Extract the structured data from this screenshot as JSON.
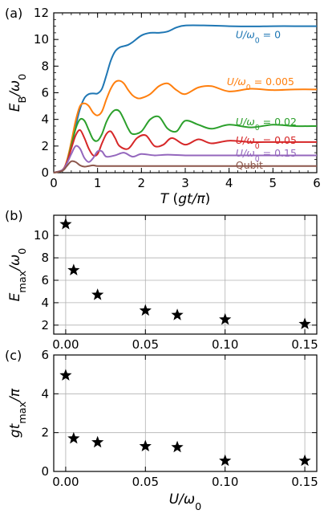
{
  "chart_data": [
    {
      "panel_label": "(a)",
      "type": "line",
      "xlabel": "T (gt/π)",
      "ylabel": "E_B/ω_0",
      "xlim": [
        0,
        6
      ],
      "ylim": [
        0,
        12
      ],
      "xticks": [
        "0",
        "1",
        "2",
        "3",
        "4",
        "5",
        "6"
      ],
      "yticks": [
        "0",
        "2",
        "4",
        "6",
        "8",
        "10",
        "12"
      ],
      "grid": false,
      "series": [
        {
          "name": "U/ω_0 = 0",
          "color": "#1f77b4",
          "final": 11.0,
          "rise_end": 0.9,
          "oscillation": "damped steps",
          "x": [
            0,
            0.2,
            0.3,
            0.4,
            0.5,
            0.6,
            0.7,
            0.8,
            0.9,
            1.0,
            1.1,
            1.2,
            1.3,
            1.4,
            1.5,
            1.6,
            1.7,
            1.8,
            2.0,
            2.2,
            2.4,
            2.6,
            2.8,
            3.0,
            3.5,
            4.0,
            4.5,
            5.0,
            5.5,
            6.0
          ],
          "y": [
            0,
            0.2,
            0.8,
            2.0,
            3.5,
            4.8,
            5.6,
            5.9,
            5.95,
            5.95,
            6.3,
            7.3,
            8.4,
            9.1,
            9.4,
            9.5,
            9.6,
            9.8,
            10.3,
            10.5,
            10.5,
            10.6,
            10.9,
            11.05,
            11.05,
            11.0,
            10.98,
            11.0,
            11.0,
            11.0
          ]
        },
        {
          "name": "U/ω_0 = 0.005",
          "color": "#ff7f0e",
          "final": 6.3,
          "rise_end": 0.75,
          "oscillation": "damped",
          "x": [
            0,
            0.2,
            0.3,
            0.4,
            0.5,
            0.6,
            0.7,
            0.8,
            0.9,
            1.0,
            1.1,
            1.2,
            1.3,
            1.4,
            1.5,
            1.6,
            1.7,
            1.8,
            1.9,
            2.0,
            2.2,
            2.4,
            2.6,
            2.8,
            3.0,
            3.3,
            3.6,
            4.0,
            4.5,
            5.0,
            5.5,
            6.0
          ],
          "y": [
            0,
            0.2,
            0.9,
            2.3,
            3.9,
            5.0,
            5.2,
            5.0,
            4.5,
            4.3,
            4.6,
            5.5,
            6.3,
            6.8,
            6.9,
            6.7,
            6.2,
            5.8,
            5.6,
            5.6,
            5.9,
            6.5,
            6.7,
            6.2,
            5.9,
            6.4,
            6.5,
            6.1,
            6.3,
            6.2,
            6.25,
            6.25
          ]
        },
        {
          "name": "U/ω_0 = 0.02",
          "color": "#2ca02c",
          "final": 3.5,
          "oscillation": "damped",
          "x": [
            0,
            0.2,
            0.3,
            0.4,
            0.5,
            0.6,
            0.7,
            0.8,
            0.9,
            1.0,
            1.1,
            1.2,
            1.3,
            1.4,
            1.5,
            1.6,
            1.7,
            1.8,
            2.0,
            2.2,
            2.4,
            2.6,
            2.8,
            3.0,
            3.3,
            3.6,
            4.0,
            4.5,
            5.0,
            5.5,
            6.0
          ],
          "y": [
            0,
            0.2,
            0.8,
            2.0,
            3.3,
            4.0,
            3.9,
            3.2,
            2.5,
            2.4,
            2.9,
            3.8,
            4.4,
            4.7,
            4.6,
            4.0,
            3.3,
            2.9,
            3.1,
            4.0,
            4.2,
            3.3,
            3.1,
            3.9,
            3.6,
            3.3,
            3.6,
            3.4,
            3.6,
            3.5,
            3.5
          ]
        },
        {
          "name": "U/ω_0 = 0.05",
          "color": "#d62728",
          "final": 2.3,
          "oscillation": "damped",
          "x": [
            0,
            0.2,
            0.3,
            0.4,
            0.5,
            0.6,
            0.7,
            0.8,
            0.9,
            1.0,
            1.1,
            1.2,
            1.3,
            1.4,
            1.5,
            1.7,
            1.9,
            2.1,
            2.3,
            2.5,
            2.7,
            3.0,
            3.3,
            3.6,
            4.0,
            4.5,
            5.0,
            5.5,
            6.0
          ],
          "y": [
            0,
            0.2,
            0.8,
            1.8,
            2.8,
            3.2,
            2.6,
            1.8,
            1.3,
            1.4,
            2.2,
            2.9,
            3.1,
            2.6,
            2.0,
            1.8,
            2.6,
            2.8,
            2.0,
            2.1,
            2.6,
            2.1,
            2.5,
            2.2,
            2.4,
            2.3,
            2.3,
            2.3,
            2.3
          ]
        },
        {
          "name": "U/ω_0 = 0.15",
          "color": "#9467bd",
          "final": 1.3,
          "oscillation": "damped",
          "x": [
            0,
            0.2,
            0.3,
            0.4,
            0.5,
            0.6,
            0.7,
            0.8,
            0.9,
            1.0,
            1.1,
            1.2,
            1.4,
            1.6,
            1.8,
            2.0,
            2.3,
            2.6,
            3.0,
            3.5,
            4.0,
            4.5,
            5.0,
            5.5,
            6.0
          ],
          "y": [
            0,
            0.2,
            0.7,
            1.4,
            2.0,
            1.8,
            1.1,
            0.8,
            1.1,
            1.6,
            1.6,
            1.2,
            1.3,
            1.5,
            1.2,
            1.4,
            1.3,
            1.35,
            1.3,
            1.3,
            1.3,
            1.3,
            1.3,
            1.3,
            1.3
          ]
        },
        {
          "name": "Qubit",
          "color": "#8c564b",
          "final": 0.5,
          "oscillation": "small damped",
          "x": [
            0,
            0.2,
            0.3,
            0.4,
            0.5,
            0.6,
            0.7,
            0.8,
            0.9,
            1.0,
            1.2,
            1.5,
            2.0,
            3.0,
            4.0,
            5.0,
            6.0
          ],
          "y": [
            0,
            0.15,
            0.5,
            0.85,
            0.8,
            0.55,
            0.45,
            0.5,
            0.55,
            0.5,
            0.5,
            0.5,
            0.5,
            0.5,
            0.5,
            0.5,
            0.5
          ]
        }
      ],
      "annotations": [
        {
          "text": "U/ω_0 = 0",
          "color": "#1f77b4"
        },
        {
          "text": "U/ω_0 = 0.005",
          "color": "#ff7f0e"
        },
        {
          "text": "U/ω_0 = 0.02",
          "color": "#2ca02c"
        },
        {
          "text": "U/ω_0 = 0.05",
          "color": "#d62728"
        },
        {
          "text": "U/ω_0 = 0.15",
          "color": "#9467bd"
        },
        {
          "text": "Qubit",
          "color": "#8c564b"
        }
      ]
    },
    {
      "panel_label": "(b)",
      "type": "scatter",
      "marker": "star",
      "xlabel": "",
      "ylabel": "E_max/ω_0",
      "xlim": [
        -0.0075,
        0.1575
      ],
      "ylim": [
        1.2,
        11.8
      ],
      "xticks": [
        "0.00",
        "0.05",
        "0.10",
        "0.15"
      ],
      "yticks": [
        "2",
        "4",
        "6",
        "8",
        "10"
      ],
      "grid": true,
      "x": [
        0,
        0.005,
        0.02,
        0.05,
        0.07,
        0.1,
        0.15
      ],
      "y": [
        11.0,
        6.9,
        4.7,
        3.3,
        2.9,
        2.5,
        2.1
      ]
    },
    {
      "panel_label": "(c)",
      "type": "scatter",
      "marker": "star",
      "xlabel": "U/ω_0",
      "ylabel": "gt_max/π",
      "xlim": [
        -0.0075,
        0.1575
      ],
      "ylim": [
        0,
        6
      ],
      "xticks": [
        "0.00",
        "0.05",
        "0.10",
        "0.15"
      ],
      "yticks": [
        "0",
        "2",
        "4",
        "6"
      ],
      "grid": true,
      "x": [
        0,
        0.005,
        0.02,
        0.05,
        0.07,
        0.1,
        0.15
      ],
      "y": [
        4.95,
        1.7,
        1.5,
        1.3,
        1.25,
        0.55,
        0.55
      ]
    }
  ]
}
